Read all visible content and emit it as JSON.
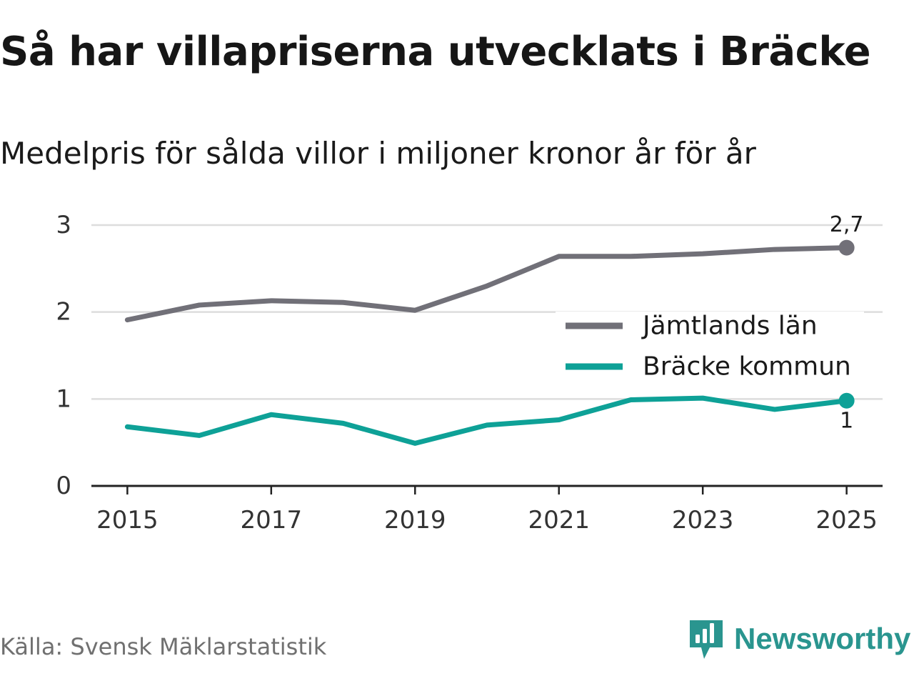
{
  "title": "Så har villapriserna utvecklats i Bräcke",
  "subtitle": "Medelpris för sålda villor i miljoner kronor år för år",
  "source": "Källa: Svensk Mäklarstatistik",
  "brand": {
    "name": "Newsworthy",
    "icon": "newsworthy-logo-icon",
    "color": "#2a958f"
  },
  "chart_data": {
    "type": "line",
    "title": "Så har villapriserna utvecklats i Bräcke",
    "subtitle": "Medelpris för sålda villor i miljoner kronor år för år",
    "xlabel": "",
    "ylabel": "",
    "x": [
      2015,
      2016,
      2017,
      2018,
      2019,
      2020,
      2021,
      2022,
      2023,
      2024,
      2025
    ],
    "xlim": [
      2014.5,
      2025.5
    ],
    "xticks": [
      "2015",
      "2017",
      "2019",
      "2021",
      "2023",
      "2025"
    ],
    "ylim": [
      0,
      3
    ],
    "yticks": [
      "0",
      "1",
      "2",
      "3"
    ],
    "grid": true,
    "legend_position": "right",
    "series": [
      {
        "name": "Jämtlands län",
        "color": "#717078",
        "values": [
          1.91,
          2.08,
          2.13,
          2.11,
          2.02,
          2.3,
          2.64,
          2.64,
          2.67,
          2.72,
          2.74
        ],
        "end_label": "2,7",
        "end_label_position": "above"
      },
      {
        "name": "Bräcke kommun",
        "color": "#0ea197",
        "values": [
          0.68,
          0.58,
          0.82,
          0.72,
          0.49,
          0.7,
          0.76,
          0.99,
          1.01,
          0.88,
          0.98
        ],
        "end_label": "1",
        "end_label_position": "below"
      }
    ]
  }
}
